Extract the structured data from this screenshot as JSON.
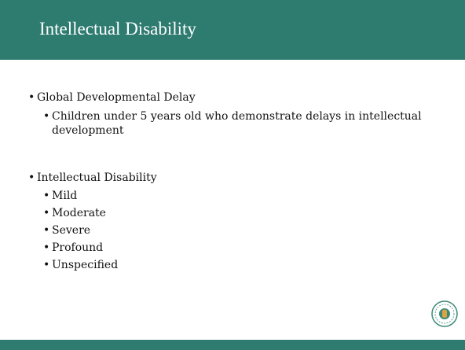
{
  "title": "Intellectual Disability",
  "bullets": [
    {
      "text": "Global Developmental Delay",
      "children": [
        "Children under 5 years old who demonstrate delays in intellectual development"
      ]
    },
    {
      "text": "Intellectual Disability",
      "children": [
        "Mild",
        "Moderate",
        "Severe",
        "Profound",
        "Unspecified"
      ]
    }
  ]
}
